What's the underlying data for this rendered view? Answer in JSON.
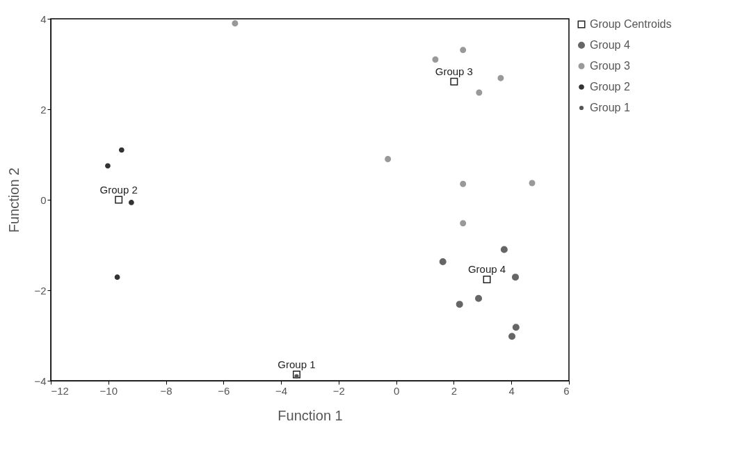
{
  "chart_data": {
    "type": "scatter",
    "xlabel": "Function 1",
    "ylabel": "Function 2",
    "xlim": [
      -12,
      6
    ],
    "xticks": [
      -12,
      -10,
      -8,
      -6,
      -4,
      -2,
      0,
      2,
      4,
      6
    ],
    "ylim": [
      -4,
      4
    ],
    "yticks": [
      -4,
      -2,
      0,
      2,
      4
    ],
    "grid": false,
    "legend": "right",
    "series": [
      {
        "name": "Group Centroids",
        "color": "#222222",
        "marker": "square",
        "x": [
          -3.46,
          -9.64,
          2.01,
          3.15
        ],
        "values": [
          -3.86,
          0.0,
          2.61,
          -1.76
        ]
      },
      {
        "name": "Group 4",
        "color": "#666666",
        "marker": "circle",
        "x": [
          3.75,
          1.62,
          4.14,
          2.86,
          2.2,
          4.16,
          4.02
        ],
        "values": [
          -1.1,
          -1.37,
          -1.71,
          -2.18,
          -2.31,
          -2.82,
          -3.02
        ]
      },
      {
        "name": "Group 3",
        "color": "#999999",
        "marker": "circle",
        "x": [
          1.36,
          2.32,
          3.63,
          2.88,
          -0.29,
          2.32,
          2.32,
          4.72,
          -5.6
        ],
        "values": [
          3.1,
          3.31,
          2.69,
          2.37,
          0.9,
          0.35,
          -0.52,
          0.37,
          3.9
        ]
      },
      {
        "name": "Group 2",
        "color": "#333333",
        "marker": "circle",
        "x": [
          -9.54,
          -10.02,
          -9.2,
          -9.69
        ],
        "values": [
          1.1,
          0.75,
          -0.06,
          -1.71
        ]
      },
      {
        "name": "Group 1",
        "color": "#555555",
        "marker": "circle",
        "x": [
          -3.46
        ],
        "values": [
          -3.9
        ]
      }
    ],
    "annotations": [
      {
        "text": "Group 1",
        "x": -3.46,
        "y": -3.86
      },
      {
        "text": "Group 2",
        "x": -9.64,
        "y": 0.0
      },
      {
        "text": "Group 3",
        "x": 2.01,
        "y": 2.61
      },
      {
        "text": "Group 4",
        "x": 3.15,
        "y": -1.76
      }
    ]
  }
}
